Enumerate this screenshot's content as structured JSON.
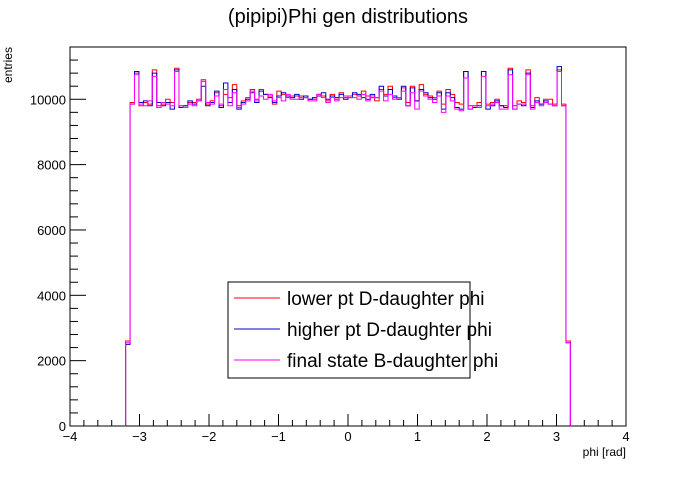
{
  "chart_data": {
    "type": "line",
    "title": "(pipipi)Phi gen distributions",
    "xlabel": "phi [rad]",
    "ylabel": "entries",
    "xlim": [
      -4,
      4
    ],
    "ylim": [
      0,
      11600
    ],
    "x_ticks": [
      -4,
      -3,
      -2,
      -1,
      0,
      1,
      2,
      3,
      4
    ],
    "y_ticks": [
      0,
      2000,
      4000,
      6000,
      8000,
      10000
    ],
    "bin_range": [
      -3.2,
      3.2
    ],
    "bins": 100,
    "grid": false,
    "legend_position": "center-bottom",
    "series": [
      {
        "name": "lower pt D-daughter phi",
        "color": "#ff0000",
        "values": [
          2600,
          9900,
          10800,
          9800,
          9900,
          9850,
          10900,
          9800,
          9850,
          10000,
          9900,
          10950,
          9800,
          9800,
          9900,
          9900,
          10000,
          10550,
          9850,
          9950,
          10200,
          9800,
          10150,
          10050,
          10450,
          9800,
          9950,
          10050,
          10300,
          10000,
          10300,
          10150,
          10100,
          9850,
          10250,
          10150,
          10050,
          10100,
          10100,
          10100,
          10050,
          10000,
          10000,
          10150,
          10100,
          9950,
          10150,
          10000,
          10200,
          10050,
          10100,
          10150,
          10100,
          10250,
          10100,
          10050,
          9950,
          10300,
          10150,
          10400,
          10050,
          10050,
          10350,
          9900,
          10400,
          9950,
          10450,
          10150,
          10100,
          10050,
          10250,
          9850,
          10300,
          10150,
          9900,
          9850,
          10850,
          9800,
          9800,
          9900,
          10850,
          9850,
          9900,
          10000,
          9800,
          9800,
          10950,
          9800,
          9950,
          9900,
          10900,
          9800,
          10050,
          9850,
          10000,
          10000,
          9850,
          10900,
          9850,
          2600
        ]
      },
      {
        "name": "higher pt D-daughter phi",
        "color": "#0000cc",
        "values": [
          2500,
          9850,
          10850,
          9900,
          9950,
          9800,
          10800,
          9900,
          9800,
          9900,
          9700,
          10900,
          9750,
          9800,
          9950,
          9850,
          9950,
          10400,
          9800,
          9900,
          10250,
          9750,
          10500,
          9900,
          10300,
          9700,
          9900,
          10000,
          10200,
          9900,
          10250,
          10150,
          10050,
          9900,
          10100,
          10200,
          10100,
          10050,
          10150,
          10000,
          10100,
          10000,
          10050,
          10100,
          10200,
          10000,
          10100,
          10050,
          10150,
          10000,
          10050,
          10200,
          10150,
          10050,
          10000,
          10150,
          10050,
          10400,
          10100,
          10300,
          10100,
          10000,
          10400,
          9800,
          10350,
          9950,
          10300,
          10200,
          10050,
          10000,
          10200,
          9700,
          10200,
          10050,
          9750,
          9700,
          10850,
          9700,
          9750,
          9800,
          10850,
          9700,
          9800,
          9950,
          9800,
          9750,
          10900,
          9700,
          9850,
          9800,
          10800,
          9750,
          9950,
          9850,
          9950,
          9850,
          9800,
          11000,
          9800,
          2550
        ]
      },
      {
        "name": "final state B-daughter phi",
        "color": "#ff00ff",
        "values": [
          2550,
          9850,
          10750,
          9850,
          9800,
          9950,
          10700,
          9750,
          9900,
          9850,
          9800,
          10850,
          9800,
          9750,
          9850,
          9800,
          9950,
          10600,
          9900,
          9850,
          10100,
          9850,
          10300,
          9800,
          10200,
          9750,
          9850,
          9950,
          10250,
          9950,
          10100,
          10000,
          10150,
          9950,
          10050,
          9950,
          10150,
          10000,
          10000,
          10050,
          10050,
          9950,
          9950,
          10150,
          10050,
          9900,
          10050,
          9950,
          10050,
          10100,
          10050,
          10050,
          10000,
          10150,
          9950,
          10100,
          10050,
          10250,
          9950,
          10150,
          10000,
          10050,
          10250,
          9800,
          10200,
          9700,
          10250,
          10100,
          10000,
          9900,
          10100,
          9600,
          10100,
          9950,
          9700,
          9650,
          10650,
          9700,
          9800,
          9750,
          10700,
          9800,
          9850,
          9900,
          9700,
          9700,
          10750,
          9700,
          9850,
          9850,
          10750,
          9700,
          9900,
          9800,
          9900,
          9850,
          9800,
          10850,
          9800,
          2550
        ]
      }
    ]
  }
}
